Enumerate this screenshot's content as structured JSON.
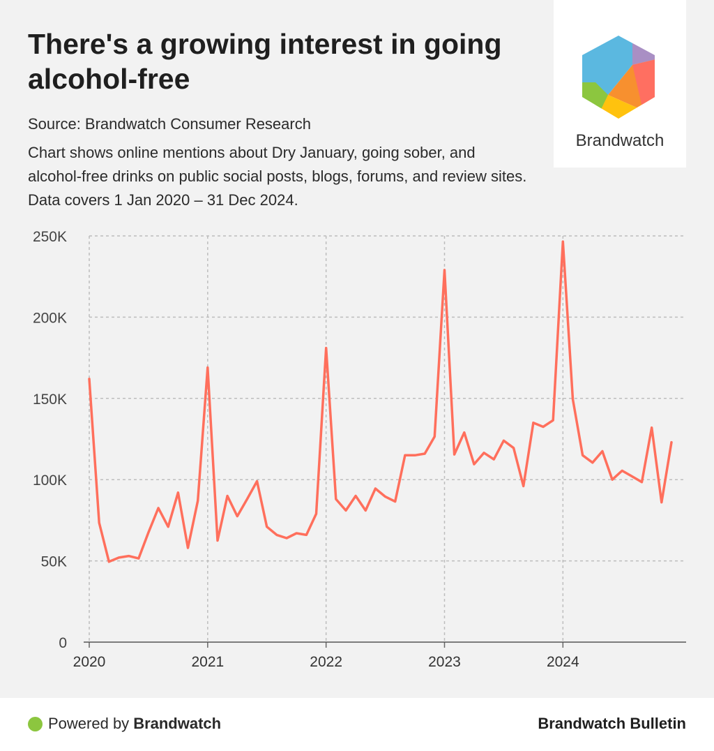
{
  "header": {
    "title": "There's a growing interest in going alcohol-free",
    "source": "Source: Brandwatch Consumer Research",
    "description": "Chart shows online mentions about Dry January, going sober, and alcohol-free drinks on public social posts, blogs, forums, and review sites. Data covers 1 Jan 2020 – 31 Dec 2024."
  },
  "logo": {
    "text": "Brandwatch",
    "colors": [
      "#5bb8e0",
      "#a98fc4",
      "#ff6f61",
      "#f7902f",
      "#ffc20e",
      "#8cc63f"
    ]
  },
  "footer": {
    "powered_prefix": "Powered by",
    "powered_brand": "Brandwatch",
    "bulletin": "Brandwatch Bulletin",
    "dot_color": "#8cc63f"
  },
  "chart_data": {
    "type": "line",
    "title": "",
    "xlabel": "",
    "ylabel": "",
    "line_color": "#ff6f5c",
    "grid": true,
    "ylim": [
      0,
      250000
    ],
    "yticks": [
      0,
      50000,
      100000,
      150000,
      200000,
      250000
    ],
    "ytick_labels": [
      "0",
      "50K",
      "100K",
      "150K",
      "200K",
      "250K"
    ],
    "xticks": [
      "2020-01",
      "2021-01",
      "2022-01",
      "2023-01",
      "2024-01"
    ],
    "xtick_labels": [
      "2020",
      "2021",
      "2022",
      "2023",
      "2024"
    ],
    "x": [
      "2020-01",
      "2020-02",
      "2020-03",
      "2020-04",
      "2020-05",
      "2020-06",
      "2020-07",
      "2020-08",
      "2020-09",
      "2020-10",
      "2020-11",
      "2020-12",
      "2021-01",
      "2021-02",
      "2021-03",
      "2021-04",
      "2021-05",
      "2021-06",
      "2021-07",
      "2021-08",
      "2021-09",
      "2021-10",
      "2021-11",
      "2021-12",
      "2022-01",
      "2022-02",
      "2022-03",
      "2022-04",
      "2022-05",
      "2022-06",
      "2022-07",
      "2022-08",
      "2022-09",
      "2022-10",
      "2022-11",
      "2022-12",
      "2023-01",
      "2023-02",
      "2023-03",
      "2023-04",
      "2023-05",
      "2023-06",
      "2023-07",
      "2023-08",
      "2023-09",
      "2023-10",
      "2023-11",
      "2023-12",
      "2024-01",
      "2024-02",
      "2024-03",
      "2024-04",
      "2024-05",
      "2024-06",
      "2024-07",
      "2024-08",
      "2024-09",
      "2024-10",
      "2024-11",
      "2024-12"
    ],
    "series": [
      {
        "values": [
          162000,
          73500,
          49500,
          52000,
          53000,
          51500,
          67500,
          82500,
          71000,
          92000,
          58000,
          87000,
          169000,
          62500,
          90000,
          77500,
          88000,
          99000,
          71000,
          66000,
          64000,
          67000,
          66000,
          79000,
          181000,
          88000,
          81000,
          90000,
          81000,
          94500,
          89500,
          86500,
          115000,
          115000,
          116000,
          126500,
          229000,
          115500,
          129000,
          109500,
          116500,
          112500,
          124000,
          119500,
          96000,
          135000,
          132500,
          136500,
          246500,
          149500,
          115000,
          110500,
          117500,
          100000,
          105500,
          102000,
          98500,
          132000,
          86000,
          123000
        ]
      }
    ]
  }
}
